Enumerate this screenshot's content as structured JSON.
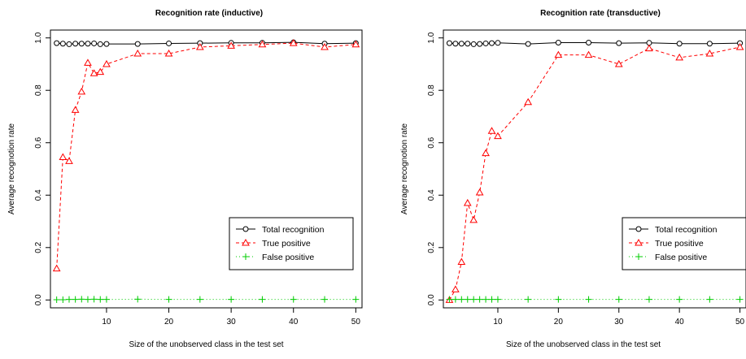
{
  "chart_data": [
    {
      "type": "line",
      "title": "Recognition rate (inductive)",
      "xlabel": "Size of the unobserved class in the test set",
      "ylabel": "Average recognotion rate",
      "xlim": [
        1,
        51
      ],
      "ylim": [
        -0.03,
        1.03
      ],
      "xticks": [
        10,
        20,
        30,
        40,
        50
      ],
      "yticks": [
        0.0,
        0.2,
        0.4,
        0.6,
        0.8,
        1.0
      ],
      "xtick_labels": [
        "10",
        "20",
        "30",
        "40",
        "50"
      ],
      "ytick_labels": [
        "0.0",
        "0.2",
        "0.4",
        "0.6",
        "0.8",
        "1.0"
      ],
      "grid": false,
      "legend_position": "bottom-right",
      "x": [
        2,
        3,
        4,
        5,
        6,
        7,
        8,
        9,
        10,
        15,
        20,
        25,
        30,
        35,
        40,
        45,
        50
      ],
      "series": [
        {
          "name": "Total recognition",
          "color": "#000000",
          "marker": "circle",
          "line": "solid",
          "values": [
            0.98,
            0.978,
            0.976,
            0.978,
            0.978,
            0.978,
            0.979,
            0.976,
            0.977,
            0.977,
            0.979,
            0.98,
            0.981,
            0.981,
            0.983,
            0.978,
            0.98
          ]
        },
        {
          "name": "True positive",
          "color": "#ff0000",
          "marker": "triangle",
          "line": "dashed",
          "values": [
            0.12,
            0.545,
            0.53,
            0.725,
            0.795,
            0.905,
            0.865,
            0.87,
            0.9,
            0.94,
            0.94,
            0.965,
            0.97,
            0.975,
            0.98,
            0.965,
            0.975
          ]
        },
        {
          "name": "False positive",
          "color": "#00cc00",
          "marker": "plus",
          "line": "dotted",
          "values": [
            0.001,
            0.001,
            0.002,
            0.002,
            0.003,
            0.002,
            0.003,
            0.002,
            0.002,
            0.003,
            0.002,
            0.002,
            0.002,
            0.002,
            0.002,
            0.002,
            0.002
          ]
        }
      ]
    },
    {
      "type": "line",
      "title": "Recognition rate (transductive)",
      "xlabel": "Size of the unobserved class in the test set",
      "ylabel": "Average recognotion rate",
      "xlim": [
        1,
        51
      ],
      "ylim": [
        -0.03,
        1.03
      ],
      "xticks": [
        10,
        20,
        30,
        40,
        50
      ],
      "yticks": [
        0.0,
        0.2,
        0.4,
        0.6,
        0.8,
        1.0
      ],
      "xtick_labels": [
        "10",
        "20",
        "30",
        "40",
        "50"
      ],
      "ytick_labels": [
        "0.0",
        "0.2",
        "0.4",
        "0.6",
        "0.8",
        "1.0"
      ],
      "grid": false,
      "legend_position": "bottom-right",
      "x": [
        2,
        3,
        4,
        5,
        6,
        7,
        8,
        9,
        10,
        15,
        20,
        25,
        30,
        35,
        40,
        45,
        50
      ],
      "series": [
        {
          "name": "Total recognition",
          "color": "#000000",
          "marker": "circle",
          "line": "solid",
          "values": [
            0.98,
            0.978,
            0.978,
            0.978,
            0.976,
            0.977,
            0.979,
            0.98,
            0.981,
            0.977,
            0.982,
            0.982,
            0.98,
            0.981,
            0.978,
            0.978,
            0.98
          ]
        },
        {
          "name": "True positive",
          "color": "#ff0000",
          "marker": "triangle",
          "line": "dashed",
          "values": [
            0.0,
            0.04,
            0.145,
            0.37,
            0.305,
            0.41,
            0.56,
            0.645,
            0.625,
            0.755,
            0.935,
            0.935,
            0.9,
            0.96,
            0.925,
            0.94,
            0.965
          ]
        },
        {
          "name": "False positive",
          "color": "#00cc00",
          "marker": "plus",
          "line": "dotted",
          "values": [
            0.002,
            0.002,
            0.002,
            0.002,
            0.002,
            0.002,
            0.002,
            0.002,
            0.002,
            0.002,
            0.002,
            0.002,
            0.002,
            0.002,
            0.002,
            0.002,
            0.002
          ]
        }
      ]
    }
  ]
}
